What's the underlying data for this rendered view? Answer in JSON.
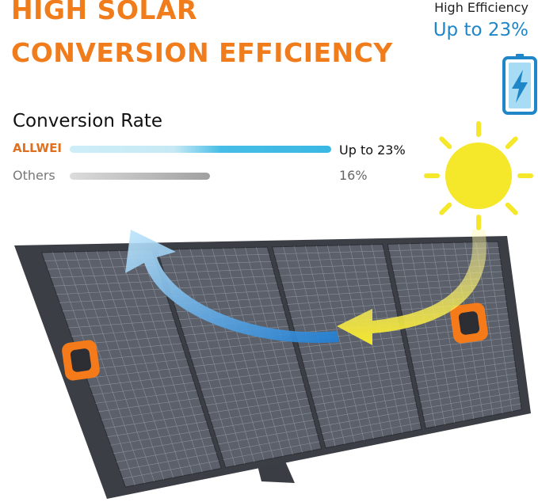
{
  "headline": {
    "line1": "HIGH SOLAR",
    "line2": "CONVERSION EFFICIENCY"
  },
  "badge": {
    "label": "High Efficiency",
    "value": "Up to 23%",
    "icon": "battery-charging-icon"
  },
  "comparison": {
    "title": "Conversion Rate",
    "rows": [
      {
        "name": "ALLWEI",
        "value_text": "Up to 23%",
        "percent": 23,
        "color": "#3ab8e4"
      },
      {
        "name": "Others",
        "value_text": "16%",
        "percent": 16,
        "color": "#a0a0a0"
      }
    ]
  },
  "colors": {
    "accent": "#f07c1c",
    "blue": "#1f86c8",
    "sun": "#f5e72a"
  }
}
